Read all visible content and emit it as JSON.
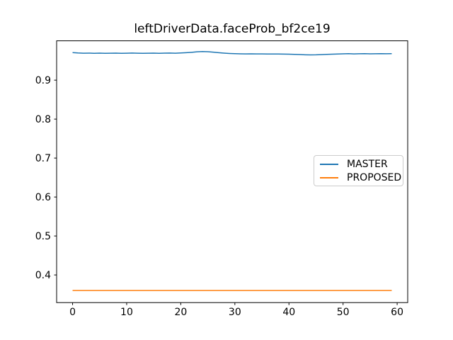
{
  "chart_data": {
    "type": "line",
    "title": "leftDriverData.faceProb_bf2ce19",
    "xlabel": "",
    "ylabel": "",
    "xlim": [
      -2.95,
      61.95
    ],
    "ylim": [
      0.329,
      1.001
    ],
    "x_ticks": [
      0,
      10,
      20,
      30,
      40,
      50,
      60
    ],
    "y_ticks": [
      0.4,
      0.5,
      0.6,
      0.7,
      0.8,
      0.9
    ],
    "grid": false,
    "background": "#ffffff",
    "axis_color": "#000000",
    "text_color": "#000000",
    "legend": {
      "position": "center right",
      "border_color": "#cccccc",
      "background": "#ffffff"
    },
    "x": [
      0,
      1,
      2,
      3,
      4,
      5,
      6,
      7,
      8,
      9,
      10,
      11,
      12,
      13,
      14,
      15,
      16,
      17,
      18,
      19,
      20,
      21,
      22,
      23,
      24,
      25,
      26,
      27,
      28,
      29,
      30,
      31,
      32,
      33,
      34,
      35,
      36,
      37,
      38,
      39,
      40,
      41,
      42,
      43,
      44,
      45,
      46,
      47,
      48,
      49,
      50,
      51,
      52,
      53,
      54,
      55,
      56,
      57,
      58,
      59
    ],
    "series": [
      {
        "name": "MASTER",
        "color": "#1f77b4",
        "values": [
          0.9708,
          0.9697,
          0.9692,
          0.9694,
          0.969,
          0.9693,
          0.9689,
          0.9691,
          0.9694,
          0.969,
          0.9692,
          0.9695,
          0.9691,
          0.9688,
          0.9692,
          0.9694,
          0.969,
          0.9693,
          0.9695,
          0.9692,
          0.9698,
          0.9705,
          0.9715,
          0.9728,
          0.9735,
          0.973,
          0.9718,
          0.9705,
          0.9694,
          0.9685,
          0.9679,
          0.9676,
          0.9674,
          0.9676,
          0.9673,
          0.9674,
          0.9672,
          0.967,
          0.9672,
          0.9669,
          0.9667,
          0.9662,
          0.9657,
          0.9651,
          0.9648,
          0.965,
          0.9655,
          0.9661,
          0.9667,
          0.9672,
          0.9676,
          0.9679,
          0.9674,
          0.9677,
          0.9679,
          0.9676,
          0.9678,
          0.968,
          0.9677,
          0.9681
        ]
      },
      {
        "name": "PROPOSED",
        "color": "#ff7f0e",
        "values": [
          0.36,
          0.36,
          0.36,
          0.36,
          0.36,
          0.36,
          0.36,
          0.36,
          0.36,
          0.36,
          0.36,
          0.36,
          0.36,
          0.36,
          0.36,
          0.36,
          0.36,
          0.36,
          0.36,
          0.36,
          0.36,
          0.36,
          0.36,
          0.36,
          0.36,
          0.36,
          0.36,
          0.36,
          0.36,
          0.36,
          0.36,
          0.36,
          0.36,
          0.36,
          0.36,
          0.36,
          0.36,
          0.36,
          0.36,
          0.36,
          0.36,
          0.36,
          0.36,
          0.36,
          0.36,
          0.36,
          0.36,
          0.36,
          0.36,
          0.36,
          0.36,
          0.36,
          0.36,
          0.36,
          0.36,
          0.36,
          0.36,
          0.36,
          0.36,
          0.36
        ]
      }
    ]
  }
}
